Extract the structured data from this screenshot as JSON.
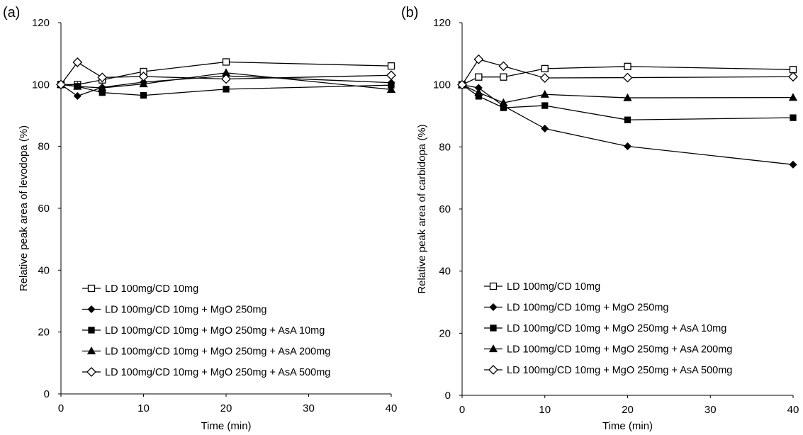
{
  "chart_data": [
    {
      "type": "line",
      "panel_label": "(a)",
      "xlabel": "Time (min)",
      "ylabel": "Relative peak area of levodopa (%)",
      "xlim": [
        0,
        40
      ],
      "ylim": [
        0,
        120
      ],
      "xticks": [
        "0",
        "10",
        "20",
        "30",
        "40"
      ],
      "yticks": [
        "0",
        "20",
        "40",
        "60",
        "80",
        "100",
        "120"
      ],
      "grid": false,
      "legend_position": "bottom-left",
      "series": [
        {
          "name": "LD 100mg/CD 10mg",
          "marker": "open-square",
          "x": [
            0,
            2,
            5,
            10,
            20,
            40
          ],
          "y": [
            100,
            100,
            101.5,
            104.2,
            107.3,
            106
          ]
        },
        {
          "name": "LD 100mg/CD 10mg + MgO 250mg",
          "marker": "filled-diamond",
          "x": [
            0,
            2,
            5,
            10,
            20,
            40
          ],
          "y": [
            100,
            96.3,
            99.1,
            100.8,
            102.8,
            100.6
          ]
        },
        {
          "name": "LD 100mg/CD 10mg + MgO 250mg + AsA 10mg",
          "marker": "filled-square",
          "x": [
            0,
            2,
            5,
            10,
            20,
            40
          ],
          "y": [
            100,
            99.4,
            97.4,
            96.5,
            98.5,
            99.8
          ]
        },
        {
          "name": "LD 100mg/CD 10mg + MgO 250mg + AsA 200mg",
          "marker": "filled-triangle",
          "x": [
            0,
            2,
            5,
            10,
            20,
            40
          ],
          "y": [
            100,
            99.4,
            98.9,
            100.2,
            103.8,
            98.4
          ]
        },
        {
          "name": "LD 100mg/CD 10mg + MgO 250mg + AsA 500mg",
          "marker": "open-diamond",
          "x": [
            0,
            2,
            5,
            10,
            20,
            40
          ],
          "y": [
            100,
            107.2,
            102.3,
            102.6,
            101.8,
            103
          ]
        }
      ]
    },
    {
      "type": "line",
      "panel_label": "(b)",
      "xlabel": "Time (min)",
      "ylabel": "Relative peak area of carbidopa (%)",
      "xlim": [
        0,
        40
      ],
      "ylim": [
        0,
        120
      ],
      "xticks": [
        "0",
        "10",
        "20",
        "30",
        "40"
      ],
      "yticks": [
        "0",
        "20",
        "40",
        "60",
        "80",
        "100",
        "120"
      ],
      "grid": false,
      "legend_position": "bottom-left",
      "series": [
        {
          "name": "LD 100mg/CD 10mg",
          "marker": "open-square",
          "x": [
            0,
            2,
            5,
            10,
            20,
            40
          ],
          "y": [
            100,
            102.5,
            102.5,
            105.2,
            105.9,
            104.9
          ]
        },
        {
          "name": "LD 100mg/CD 10mg + MgO 250mg",
          "marker": "filled-diamond",
          "x": [
            0,
            2,
            5,
            10,
            20,
            40
          ],
          "y": [
            100,
            99,
            93.2,
            85.9,
            80.2,
            74.3
          ]
        },
        {
          "name": "LD 100mg/CD 10mg + MgO 250mg + AsA 10mg",
          "marker": "filled-square",
          "x": [
            0,
            2,
            5,
            10,
            20,
            40
          ],
          "y": [
            100,
            96.3,
            92.6,
            93.3,
            88.7,
            89.4
          ]
        },
        {
          "name": "LD 100mg/CD 10mg + MgO 250mg + AsA 200mg",
          "marker": "filled-triangle",
          "x": [
            0,
            2,
            5,
            10,
            20,
            40
          ],
          "y": [
            100,
            97.5,
            94.2,
            96.9,
            95.8,
            95.9
          ]
        },
        {
          "name": "LD 100mg/CD 10mg + MgO 250mg + AsA 500mg",
          "marker": "open-diamond",
          "x": [
            0,
            2,
            5,
            10,
            20,
            40
          ],
          "y": [
            100,
            108.2,
            106,
            102.2,
            102.3,
            102.6
          ]
        }
      ]
    }
  ]
}
